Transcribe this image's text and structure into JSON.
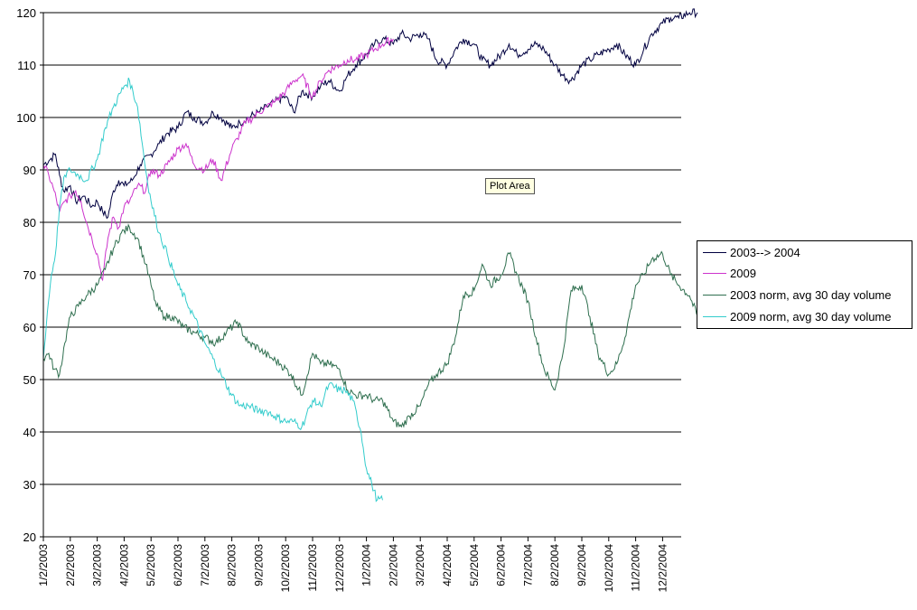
{
  "chart_data": {
    "type": "line",
    "title": "",
    "xlabel": "",
    "ylabel": "",
    "ylim": [
      20,
      120
    ],
    "yticks": [
      20,
      30,
      40,
      50,
      60,
      70,
      80,
      90,
      100,
      110,
      120
    ],
    "x_tick_labels": [
      "1/2/2003",
      "2/2/2003",
      "3/2/2003",
      "4/2/2003",
      "5/2/2003",
      "6/2/2003",
      "7/2/2003",
      "8/2/2003",
      "9/2/2003",
      "10/2/2003",
      "11/2/2003",
      "12/2/2003",
      "1/2/2004",
      "2/2/2004",
      "3/2/2004",
      "4/2/2004",
      "5/2/2004",
      "6/2/2004",
      "7/2/2004",
      "8/2/2004",
      "9/2/2004",
      "10/2/2004",
      "11/2/2004",
      "12/2/2004"
    ],
    "xlim_months": [
      0,
      24.5
    ],
    "grid": "horizontal",
    "legend_position": "right",
    "annotation": "Plot Area",
    "series": [
      {
        "name": "2003--> 2004",
        "color": "#000040",
        "x": [
          0,
          0.25,
          0.45,
          0.6,
          0.75,
          1.0,
          1.2,
          1.5,
          1.8,
          2.0,
          2.2,
          2.4,
          2.6,
          2.8,
          3.0,
          3.3,
          3.6,
          4.0,
          4.3,
          4.6,
          5.0,
          5.3,
          5.6,
          6.0,
          6.3,
          6.6,
          7.0,
          7.3,
          7.6,
          8.0,
          8.3,
          8.6,
          9.0,
          9.3,
          9.6,
          10.0,
          10.3,
          10.6,
          11.0,
          11.3,
          11.6,
          12.0,
          12.3,
          12.6,
          13.0,
          13.3,
          13.6,
          14.0,
          14.3,
          14.6,
          15.0,
          15.3,
          15.6,
          16.0,
          16.3,
          16.6,
          17.0,
          17.3,
          17.6,
          18.0,
          18.3,
          18.6,
          19.0,
          19.3,
          19.6,
          20.0,
          20.3,
          20.6,
          21.0,
          21.3,
          21.6,
          22.0,
          22.3,
          22.6,
          23.0,
          23.3,
          23.6,
          24.0,
          24.3
        ],
        "values": [
          91,
          92,
          93,
          89,
          86,
          87,
          84,
          85,
          83,
          84,
          82,
          81,
          86,
          88,
          87,
          88,
          91,
          93,
          95,
          97,
          98,
          101,
          100,
          99,
          101,
          100,
          98,
          99,
          100,
          101,
          102,
          103,
          104,
          101,
          105,
          104,
          106,
          107,
          105,
          108,
          110,
          112,
          114,
          115,
          114,
          116,
          115,
          116,
          115,
          111,
          110,
          113,
          115,
          114,
          111,
          110,
          112,
          114,
          112,
          113,
          114,
          113,
          110,
          108,
          107,
          110,
          111,
          112,
          113,
          114,
          112,
          110,
          113,
          116,
          118,
          119,
          119,
          120,
          120
        ]
      },
      {
        "name": "2009",
        "color": "#cc33cc",
        "x": [
          0,
          0.2,
          0.4,
          0.6,
          0.8,
          1.0,
          1.2,
          1.4,
          1.6,
          1.8,
          2.0,
          2.2,
          2.4,
          2.6,
          2.8,
          3.0,
          3.2,
          3.5,
          3.8,
          4.0,
          4.3,
          4.6,
          5.0,
          5.3,
          5.6,
          6.0,
          6.3,
          6.6,
          7.0,
          7.2,
          7.5,
          7.8,
          8.0,
          8.3,
          8.6,
          9.0,
          9.3,
          9.6,
          10.0,
          10.3,
          10.6,
          11.0,
          11.3,
          11.6,
          12.0,
          12.3,
          12.6,
          13.0
        ],
        "values": [
          91,
          89,
          86,
          82,
          84,
          85,
          86,
          84,
          80,
          77,
          74,
          69,
          77,
          81,
          79,
          83,
          84,
          87,
          86,
          90,
          89,
          91,
          94,
          95,
          91,
          90,
          92,
          88,
          94,
          96,
          99,
          100,
          101,
          102,
          103,
          105,
          107,
          108,
          104,
          107,
          109,
          110,
          111,
          111,
          112,
          113,
          114,
          115
        ]
      },
      {
        "name": "2003 norm, avg 30 day volume",
        "color": "#2f6f4f",
        "x": [
          0,
          0.2,
          0.4,
          0.6,
          0.8,
          1.0,
          1.3,
          1.6,
          2.0,
          2.3,
          2.6,
          2.9,
          3.2,
          3.5,
          3.8,
          4.0,
          4.2,
          4.5,
          4.8,
          5.2,
          5.6,
          6.0,
          6.4,
          6.8,
          7.2,
          7.6,
          8.0,
          8.2,
          8.5,
          8.8,
          9.2,
          9.6,
          10.0,
          10.3,
          10.6,
          11.0,
          11.3,
          11.6,
          12.0,
          12.3,
          12.6,
          13.0,
          13.3,
          13.6,
          14.0,
          14.3,
          14.6,
          15.0,
          15.3,
          15.6,
          16.0,
          16.3,
          16.6,
          17.0,
          17.3,
          17.6,
          18.0,
          18.3,
          18.6,
          19.0,
          19.3,
          19.6,
          20.0,
          20.3,
          20.6,
          21.0,
          21.3,
          21.6,
          22.0,
          22.3,
          22.6,
          23.0,
          23.3,
          23.6,
          24.0,
          24.3,
          24.5
        ],
        "values": [
          54,
          55,
          52,
          51,
          57,
          62,
          64,
          66,
          68,
          71,
          75,
          78,
          79,
          77,
          72,
          68,
          64,
          62,
          62,
          60,
          59,
          58,
          57,
          59,
          61,
          57,
          56,
          55,
          54,
          53,
          51,
          47,
          55,
          53,
          53,
          52,
          48,
          47,
          47,
          46,
          46,
          42,
          41,
          43,
          45,
          49,
          51,
          53,
          58,
          66,
          67,
          72,
          68,
          70,
          74,
          70,
          65,
          58,
          52,
          48,
          55,
          67,
          68,
          62,
          55,
          51,
          53,
          58,
          68,
          70,
          73,
          74,
          70,
          68,
          66,
          62,
          60
        ]
      },
      {
        "name": "2009 norm, avg 30 day volume",
        "color": "#33cccc",
        "x": [
          0,
          0.15,
          0.3,
          0.45,
          0.6,
          0.8,
          1.0,
          1.3,
          1.6,
          2.0,
          2.3,
          2.6,
          3.0,
          3.2,
          3.5,
          3.8,
          4.0,
          4.3,
          4.6,
          5.0,
          5.3,
          5.6,
          6.0,
          6.3,
          6.6,
          7.0,
          7.3,
          7.6,
          8.0,
          8.3,
          8.6,
          9.0,
          9.3,
          9.6,
          10.0,
          10.3,
          10.6,
          11.0,
          11.2,
          11.5,
          11.8,
          12.0,
          12.2,
          12.4,
          12.6
        ],
        "values": [
          54,
          63,
          70,
          74,
          83,
          89,
          90,
          89,
          88,
          92,
          98,
          102,
          106,
          107,
          102,
          90,
          84,
          78,
          74,
          68,
          65,
          62,
          57,
          54,
          51,
          47,
          45,
          45,
          44,
          44,
          43,
          42,
          42,
          41,
          46,
          45,
          49,
          48,
          48,
          46,
          40,
          33,
          30,
          27,
          27
        ]
      }
    ]
  }
}
